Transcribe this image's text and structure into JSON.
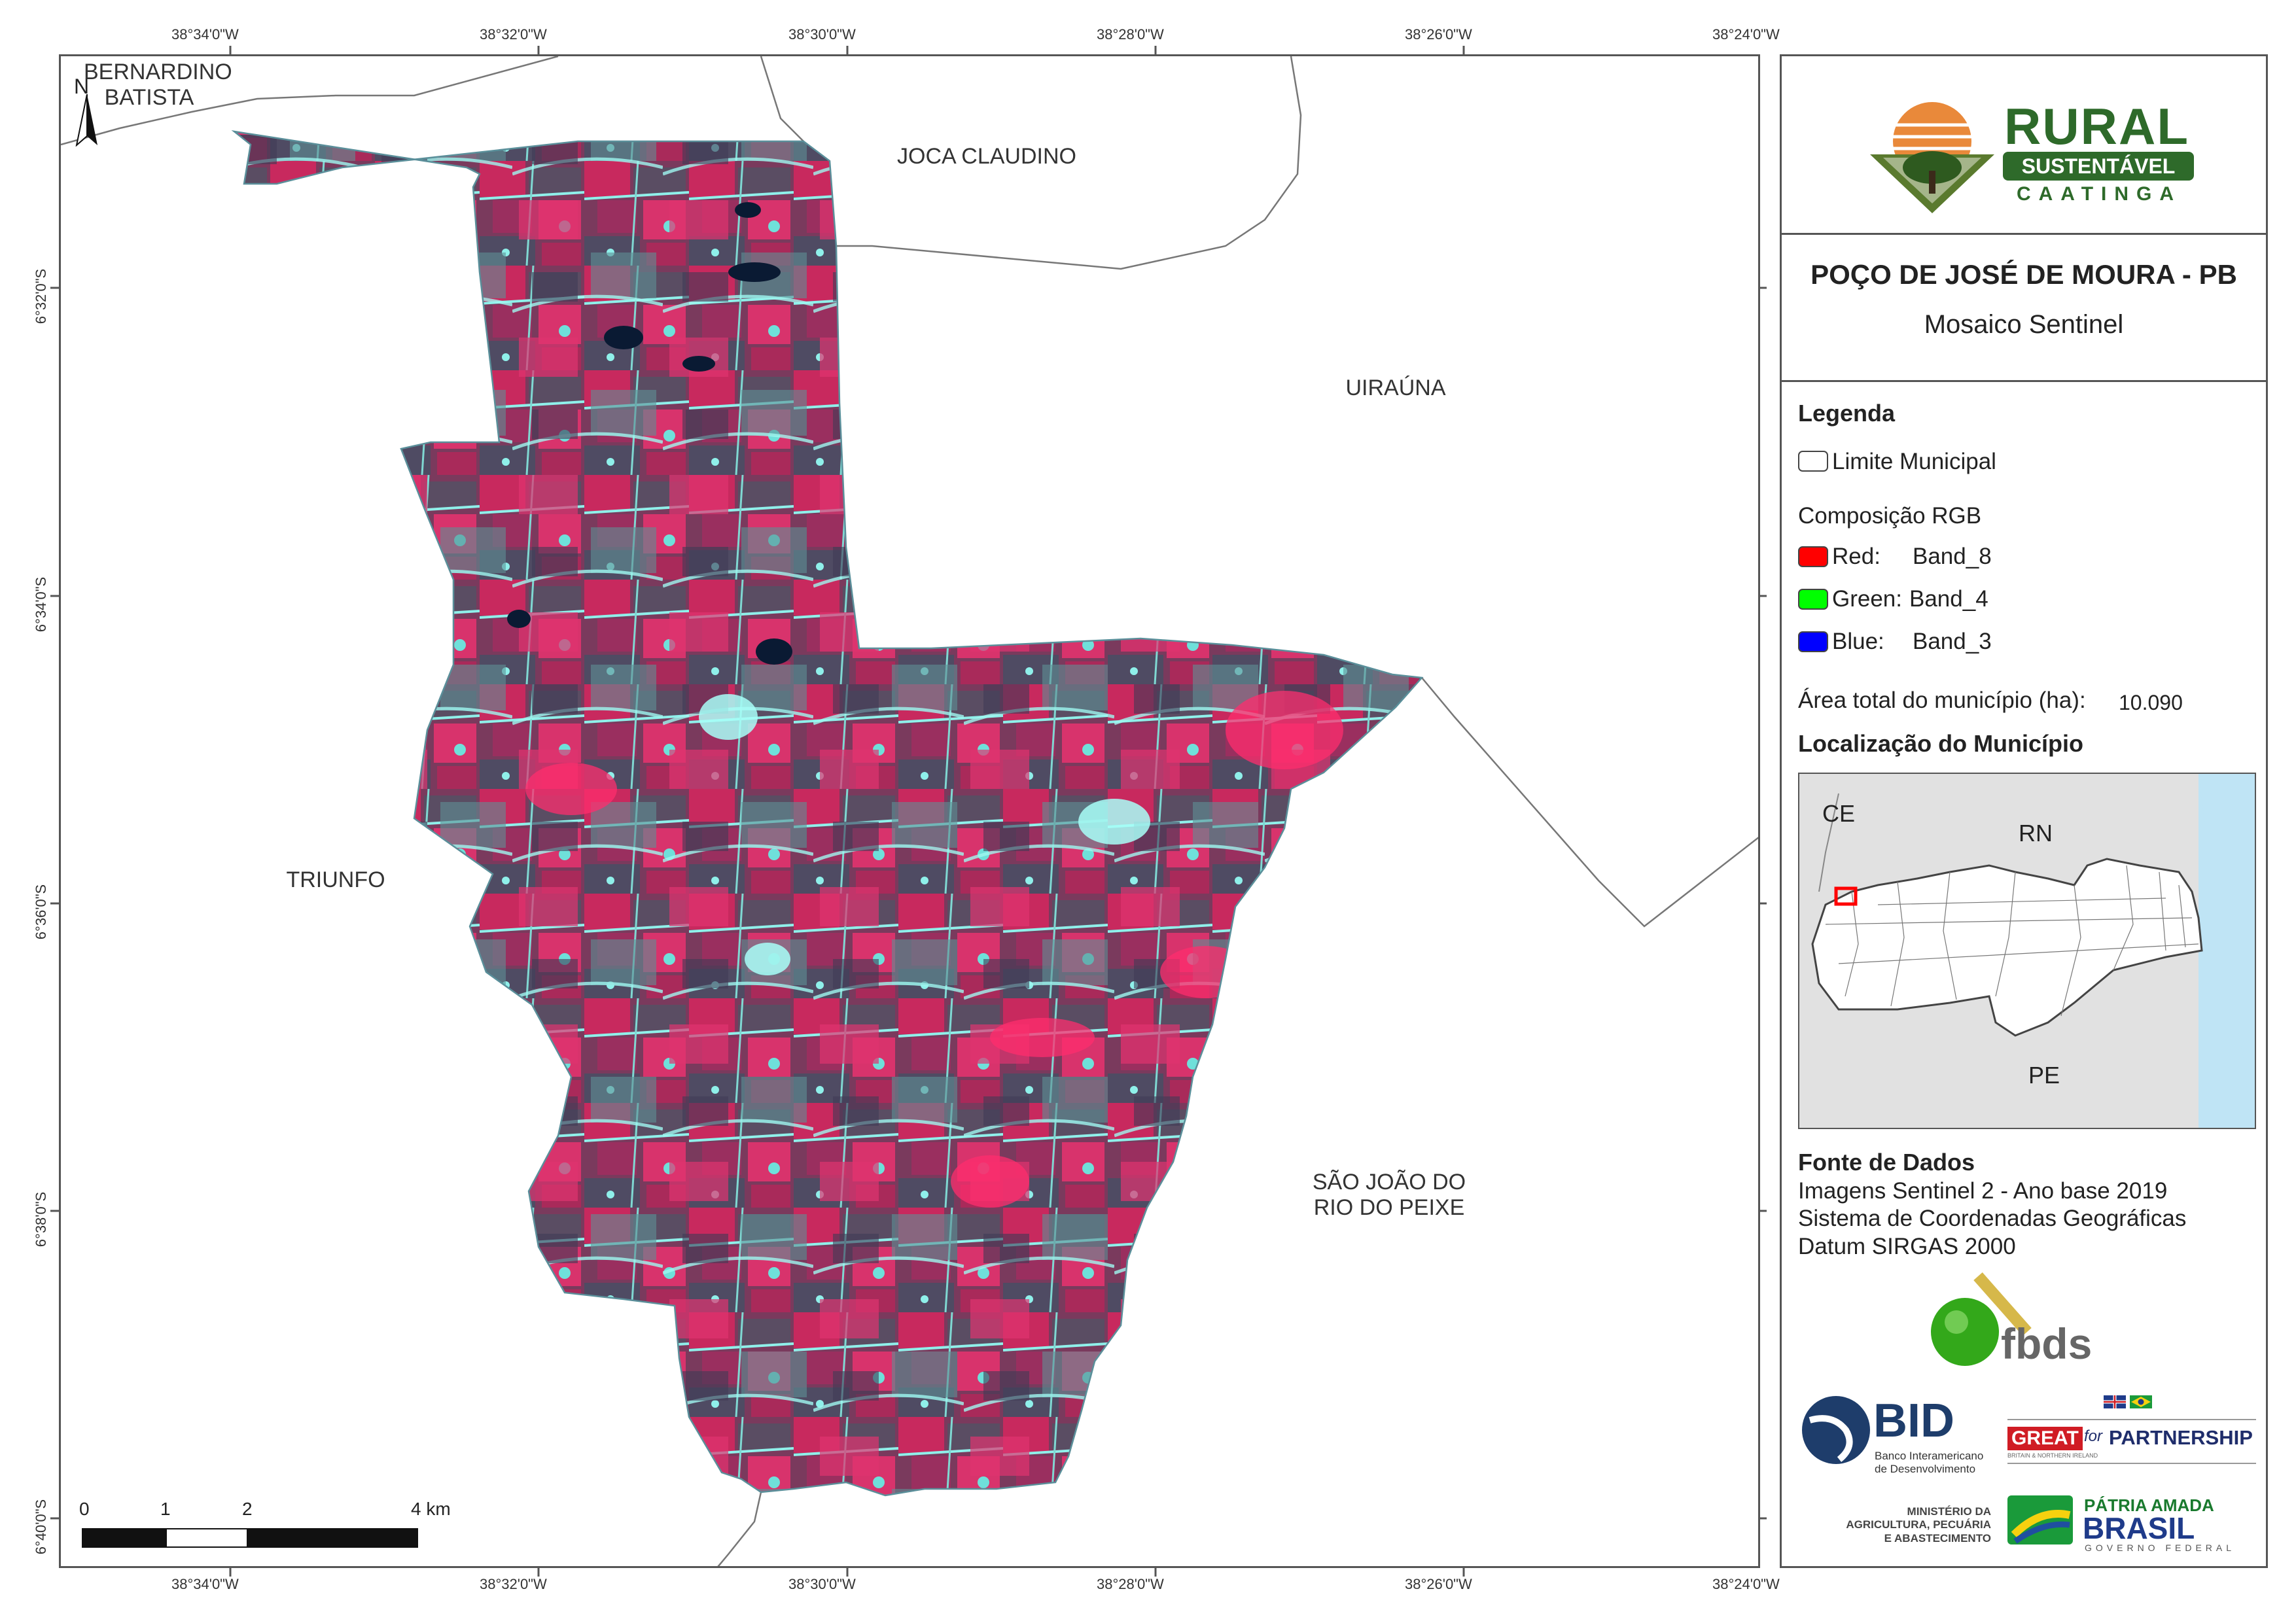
{
  "coords": {
    "top": [
      "38°34'0\"W",
      "38°32'0\"W",
      "38°30'0\"W",
      "38°28'0\"W",
      "38°26'0\"W",
      "38°24'0\"W"
    ],
    "bottom": [
      "38°34'0\"W",
      "38°32'0\"W",
      "38°30'0\"W",
      "38°28'0\"W",
      "38°26'0\"W",
      "38°24'0\"W"
    ],
    "left": [
      "6°32'0\"S",
      "6°34'0\"S",
      "6°36'0\"S",
      "6°38'0\"S",
      "6°40'0\"S"
    ]
  },
  "map": {
    "north_label": "N",
    "neighbors": {
      "bernardino_line1": "BERNARDINO",
      "bernardino_line2": "BATISTA",
      "joca": "JOCA CLAUDINO",
      "uirauna": "UIRAÚNA",
      "triunfo": "TRIUNFO",
      "sjoao_line1": "SÃO JOÃO DO",
      "sjoao_line2": "RIO DO PEIXE"
    },
    "scalebar": {
      "t0": "0",
      "t1": "1",
      "t2": "2",
      "t4": "4 km"
    },
    "colors": {
      "vegetation": "#c8295e",
      "water": "#0a1a33",
      "urban": "#8ff0ea",
      "soil": "#5a4d63"
    }
  },
  "panel": {
    "logo": {
      "word1": "RURAL",
      "word2": "SUSTENTÁVEL",
      "word3": "CAATINGA"
    },
    "title": "POÇO DE JOSÉ DE MOURA - PB",
    "subtitle": "Mosaico Sentinel",
    "legend": {
      "heading": "Legenda",
      "limit": "Limite Municipal",
      "rgb_heading": "Composição RGB",
      "red_label": "Red:",
      "red_band": "Band_8",
      "green_label": "Green:",
      "green_band": "Band_4",
      "blue_label": "Blue:",
      "blue_band": "Band_3",
      "area_label": "Área total do município (ha):",
      "area_value": "10.090",
      "colors": {
        "red": "#ff0000",
        "green": "#00ff00",
        "blue": "#0000ff"
      }
    },
    "location": {
      "heading": "Localização do Município",
      "ce": "CE",
      "rn": "RN",
      "pe": "PE"
    },
    "sources": {
      "heading": "Fonte de Dados",
      "line1": "Imagens Sentinel 2 - Ano base 2019",
      "line2": "Sistema de Coordenadas Geográficas",
      "line3": "Datum SIRGAS 2000"
    },
    "logos": {
      "fbds": "fbds",
      "bid": "BID",
      "bid_sub1": "Banco Interamericano",
      "bid_sub2": "de Desenvolvimento",
      "great": "GREAT",
      "great_for": "for",
      "great_partnership": "PARTNERSHIP",
      "great_sub": "BRITAIN & NORTHERN IRELAND",
      "min1": "MINISTÉRIO DA",
      "min2": "AGRICULTURA, PECUÁRIA",
      "min3": "E ABASTECIMENTO",
      "patria1": "PÁTRIA AMADA",
      "patria2": "BRASIL",
      "patria3": "GOVERNO FEDERAL"
    }
  }
}
